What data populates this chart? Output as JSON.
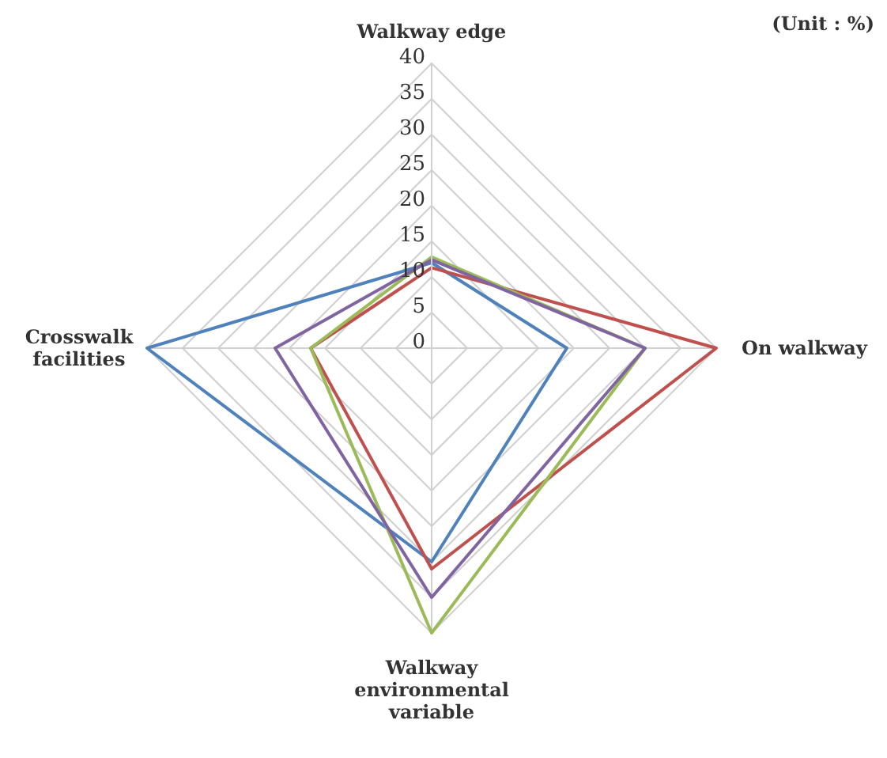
{
  "chart_data": {
    "type": "radar",
    "annotations": [
      "(Unit : %)"
    ],
    "categories": [
      "Walkway edge",
      "On walkway",
      "Walkway environmental variable",
      "Crosswalk facilities"
    ],
    "series": [
      {
        "color": "#4f81bd",
        "values": [
          12,
          19,
          30,
          40
        ]
      },
      {
        "color": "#c0504d",
        "values": [
          11.3,
          40,
          31,
          17
        ]
      },
      {
        "color": "#9bbb59",
        "values": [
          12.8,
          30,
          40,
          17
        ]
      },
      {
        "color": "#8064a2",
        "values": [
          12.4,
          30,
          35,
          22
        ]
      }
    ],
    "ylim": [
      0,
      40
    ],
    "yticks": [
      0,
      5,
      10,
      15,
      20,
      25,
      30,
      35,
      40
    ],
    "grid": true,
    "legend": false,
    "marker": "none"
  }
}
